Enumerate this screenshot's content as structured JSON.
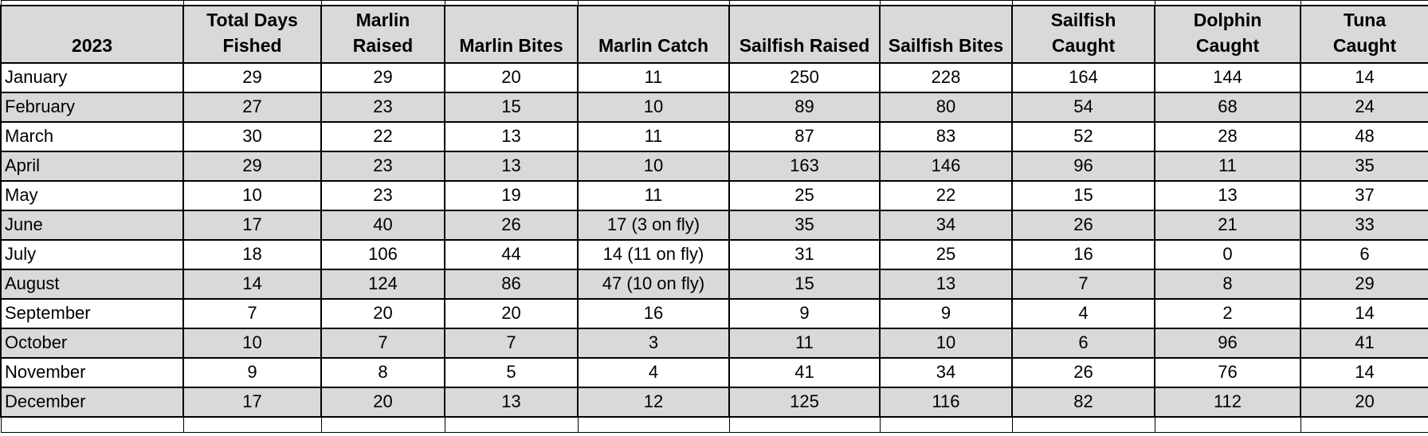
{
  "sheet": {
    "year_title": "2023",
    "colors": {
      "grid_border": "#000000",
      "header_bg": "#d9d9d9",
      "alt_row_bg": "#d9d9d9",
      "row_bg": "#ffffff",
      "text": "#000000"
    }
  },
  "table": {
    "columns": [
      {
        "id": "month",
        "label_line1": "",
        "label_line2": "2023"
      },
      {
        "id": "total_days_fished",
        "label_line1": "Total Days",
        "label_line2": "Fished"
      },
      {
        "id": "marlin_raised",
        "label_line1": "Marlin",
        "label_line2": "Raised"
      },
      {
        "id": "marlin_bites",
        "label_line1": "",
        "label_line2": "Marlin Bites"
      },
      {
        "id": "marlin_catch",
        "label_line1": "",
        "label_line2": "Marlin Catch"
      },
      {
        "id": "sailfish_raised",
        "label_line1": "",
        "label_line2": "Sailfish Raised"
      },
      {
        "id": "sailfish_bites",
        "label_line1": "",
        "label_line2": "Sailfish Bites"
      },
      {
        "id": "sailfish_caught",
        "label_line1": "Sailfish",
        "label_line2": "Caught"
      },
      {
        "id": "dolphin_caught",
        "label_line1": "Dolphin",
        "label_line2": "Caught"
      },
      {
        "id": "tuna_caught",
        "label_line1": "Tuna",
        "label_line2": "Caught"
      }
    ],
    "rows": [
      {
        "month": "January",
        "values": [
          "29",
          "29",
          "20",
          "11",
          "250",
          "228",
          "164",
          "144",
          "14"
        ]
      },
      {
        "month": "February",
        "values": [
          "27",
          "23",
          "15",
          "10",
          "89",
          "80",
          "54",
          "68",
          "24"
        ]
      },
      {
        "month": "March",
        "values": [
          "30",
          "22",
          "13",
          "11",
          "87",
          "83",
          "52",
          "28",
          "48"
        ]
      },
      {
        "month": "April",
        "values": [
          "29",
          "23",
          "13",
          "10",
          "163",
          "146",
          "96",
          "11",
          "35"
        ]
      },
      {
        "month": "May",
        "values": [
          "10",
          "23",
          "19",
          "11",
          "25",
          "22",
          "15",
          "13",
          "37"
        ]
      },
      {
        "month": "June",
        "values": [
          "17",
          "40",
          "26",
          "17 (3 on fly)",
          "35",
          "34",
          "26",
          "21",
          "33"
        ]
      },
      {
        "month": "July",
        "values": [
          "18",
          "106",
          "44",
          "14 (11 on fly)",
          "31",
          "25",
          "16",
          "0",
          "6"
        ]
      },
      {
        "month": "August",
        "values": [
          "14",
          "124",
          "86",
          "47 (10 on fly)",
          "15",
          "13",
          "7",
          "8",
          "29"
        ]
      },
      {
        "month": "September",
        "values": [
          "7",
          "20",
          "20",
          "16",
          "9",
          "9",
          "4",
          "2",
          "14"
        ]
      },
      {
        "month": "October",
        "values": [
          "10",
          "7",
          "7",
          "3",
          "11",
          "10",
          "6",
          "96",
          "41"
        ]
      },
      {
        "month": "November",
        "values": [
          "9",
          "8",
          "5",
          "4",
          "41",
          "34",
          "26",
          "76",
          "14"
        ]
      },
      {
        "month": "December",
        "values": [
          "17",
          "20",
          "13",
          "12",
          "125",
          "116",
          "82",
          "112",
          "20"
        ]
      }
    ]
  }
}
